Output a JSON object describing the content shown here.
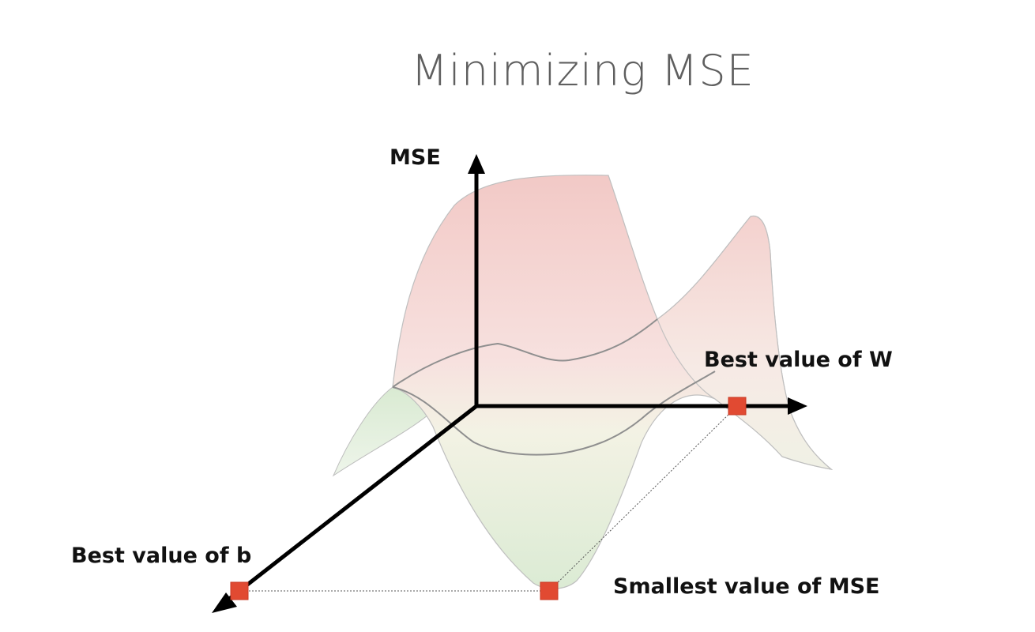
{
  "title": "Minimizing MSE",
  "labels": {
    "mse_axis": "MSE",
    "best_w": "Best value of W",
    "best_b": "Best value of b",
    "smallest_mse": "Smallest value of MSE"
  },
  "colors": {
    "surface_top": "#f3cccc",
    "surface_bottom": "#dcebd6",
    "marker": "#e14a32",
    "axis": "#000000",
    "title": "#5f5f5f"
  }
}
